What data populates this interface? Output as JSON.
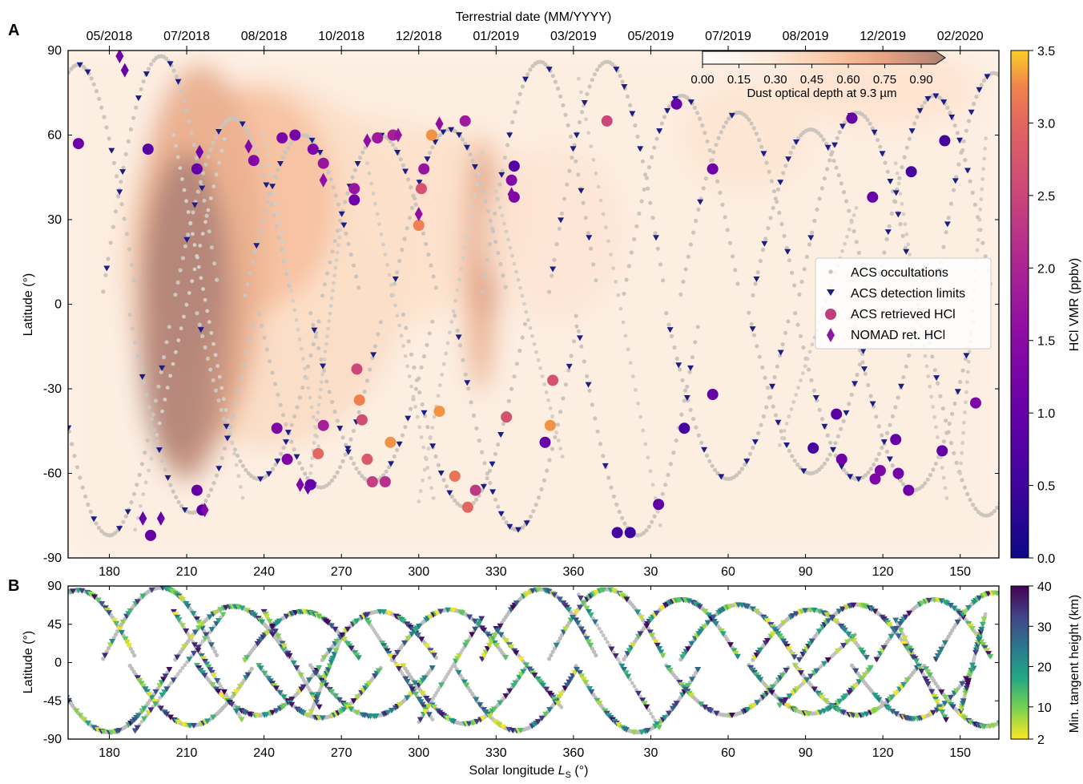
{
  "chart_data": [
    {
      "panel_label": "A",
      "type": "scatter",
      "xlabel": "",
      "ylabel": "Latitude (°)",
      "top_axis_title": "Terrestrial date (MM/YYYY)",
      "top_tick_labels": [
        "05/2018",
        "07/2018",
        "08/2018",
        "10/2018",
        "12/2018",
        "01/2019",
        "03/2019",
        "05/2019",
        "07/2019",
        "08/2019",
        "12/2019",
        "02/2020"
      ],
      "x_ticks": [
        180,
        210,
        240,
        270,
        300,
        330,
        360,
        30,
        60,
        90,
        120,
        150
      ],
      "xlim_continuous": [
        164,
        525
      ],
      "y_ticks": [
        90,
        60,
        30,
        0,
        -30,
        -60,
        -90
      ],
      "ylim": [
        -90,
        90
      ],
      "background_field": "Dust optical depth at 9.3 µm",
      "dust_colorbar": {
        "label": "Dust optical depth at 9.3 µm",
        "ticks": [
          "0.00",
          "0.15",
          "0.30",
          "0.45",
          "0.60",
          "0.75",
          "0.90"
        ],
        "colors": [
          "#fff5ec",
          "#fde3cf",
          "#f9c7a4",
          "#efa885",
          "#d18f77",
          "#b07e73"
        ]
      },
      "hcl_colorbar": {
        "label": "HCl VMR (ppbv)",
        "ticks": [
          "0.0",
          "0.5",
          "1.0",
          "1.5",
          "2.0",
          "2.5",
          "3.0",
          "3.5"
        ],
        "range": [
          0,
          3.5
        ],
        "colormap": "plasma"
      },
      "legend": [
        {
          "label": "ACS occultations",
          "marker": "dot",
          "color": "#c9c3bd"
        },
        {
          "label": "ACS detection limits",
          "marker": "triangle-down",
          "color": "#1d1d86"
        },
        {
          "label": "ACS retrieved HCl",
          "marker": "circle",
          "color": "#c1407b"
        },
        {
          "label": "NOMAD ret. HCl",
          "marker": "diamond",
          "color": "#8b1aa3"
        }
      ],
      "legend_position": "right-middle",
      "retrieved_hcl_points": [
        {
          "ls": 168,
          "lat": 57,
          "vmr": 1.1
        },
        {
          "ls": 195,
          "lat": 55,
          "vmr": 0.8
        },
        {
          "ls": 196,
          "lat": -82,
          "vmr": 1.0
        },
        {
          "ls": 214,
          "lat": 48,
          "vmr": 1.0
        },
        {
          "ls": 214,
          "lat": -66,
          "vmr": 1.0
        },
        {
          "ls": 216,
          "lat": -73,
          "vmr": 0.8
        },
        {
          "ls": 236,
          "lat": 51,
          "vmr": 1.4
        },
        {
          "ls": 247,
          "lat": 59,
          "vmr": 1.3
        },
        {
          "ls": 252,
          "lat": 60,
          "vmr": 1.2
        },
        {
          "ls": 259,
          "lat": 55,
          "vmr": 1.3
        },
        {
          "ls": 263,
          "lat": 50,
          "vmr": 1.7
        },
        {
          "ls": 263,
          "lat": -43,
          "vmr": 1.9
        },
        {
          "ls": 245,
          "lat": -44,
          "vmr": 1.3
        },
        {
          "ls": 249,
          "lat": -55,
          "vmr": 1.3
        },
        {
          "ls": 258,
          "lat": -64,
          "vmr": 1.0
        },
        {
          "ls": 261,
          "lat": -53,
          "vmr": 3.0
        },
        {
          "ls": 275,
          "lat": 37,
          "vmr": 1.1
        },
        {
          "ls": 275,
          "lat": 41,
          "vmr": 1.7
        },
        {
          "ls": 276,
          "lat": -23,
          "vmr": 2.5
        },
        {
          "ls": 277,
          "lat": -34,
          "vmr": 3.2
        },
        {
          "ls": 278,
          "lat": -41,
          "vmr": 2.6
        },
        {
          "ls": 280,
          "lat": -55,
          "vmr": 2.8
        },
        {
          "ls": 282,
          "lat": -63,
          "vmr": 2.4
        },
        {
          "ls": 287,
          "lat": -63,
          "vmr": 2.2
        },
        {
          "ls": 289,
          "lat": -49,
          "vmr": 3.3
        },
        {
          "ls": 284,
          "lat": 59,
          "vmr": 1.8
        },
        {
          "ls": 290,
          "lat": 60,
          "vmr": 1.9
        },
        {
          "ls": 300,
          "lat": 28,
          "vmr": 3.2
        },
        {
          "ls": 301,
          "lat": 41,
          "vmr": 2.7
        },
        {
          "ls": 302,
          "lat": 48,
          "vmr": 1.7
        },
        {
          "ls": 305,
          "lat": 60,
          "vmr": 3.3
        },
        {
          "ls": 308,
          "lat": -38,
          "vmr": 3.3
        },
        {
          "ls": 314,
          "lat": -61,
          "vmr": 3.1
        },
        {
          "ls": 318,
          "lat": 65,
          "vmr": 1.8
        },
        {
          "ls": 319,
          "lat": -72,
          "vmr": 3.0
        },
        {
          "ls": 322,
          "lat": -66,
          "vmr": 2.3
        },
        {
          "ls": 334,
          "lat": -40,
          "vmr": 2.7
        },
        {
          "ls": 336,
          "lat": 44,
          "vmr": 1.4
        },
        {
          "ls": 337,
          "lat": 49,
          "vmr": 0.8
        },
        {
          "ls": 337,
          "lat": 38,
          "vmr": 1.3
        },
        {
          "ls": 349,
          "lat": -49,
          "vmr": 1.0
        },
        {
          "ls": 351,
          "lat": -43,
          "vmr": 3.3
        },
        {
          "ls": 352,
          "lat": -27,
          "vmr": 2.7
        },
        {
          "ls": 373,
          "lat": 65,
          "vmr": 2.5
        },
        {
          "ls": 377,
          "lat": -81,
          "vmr": 0.6
        },
        {
          "ls": 382,
          "lat": -81,
          "vmr": 0.5
        },
        {
          "ls": 393,
          "lat": -71,
          "vmr": 0.9
        },
        {
          "ls": 400,
          "lat": 71,
          "vmr": 1.0
        },
        {
          "ls": 403,
          "lat": -44,
          "vmr": 0.6
        },
        {
          "ls": 414,
          "lat": -32,
          "vmr": 1.0
        },
        {
          "ls": 414,
          "lat": 48,
          "vmr": 1.1
        },
        {
          "ls": 453,
          "lat": -51,
          "vmr": 0.6
        },
        {
          "ls": 462,
          "lat": -39,
          "vmr": 0.8
        },
        {
          "ls": 464,
          "lat": -55,
          "vmr": 1.1
        },
        {
          "ls": 468,
          "lat": 66,
          "vmr": 1.0
        },
        {
          "ls": 476,
          "lat": 38,
          "vmr": 1.0
        },
        {
          "ls": 477,
          "lat": -62,
          "vmr": 1.3
        },
        {
          "ls": 479,
          "lat": -59,
          "vmr": 1.3
        },
        {
          "ls": 485,
          "lat": -48,
          "vmr": 1.0
        },
        {
          "ls": 486,
          "lat": -60,
          "vmr": 1.2
        },
        {
          "ls": 490,
          "lat": -66,
          "vmr": 1.1
        },
        {
          "ls": 491,
          "lat": 47,
          "vmr": 0.6
        },
        {
          "ls": 503,
          "lat": -52,
          "vmr": 0.9
        },
        {
          "ls": 504,
          "lat": 58,
          "vmr": 0.6
        },
        {
          "ls": 516,
          "lat": -35,
          "vmr": 1.3
        }
      ],
      "nomad_hcl_points": [
        {
          "ls": 184,
          "lat": 88,
          "vmr": 1.1
        },
        {
          "ls": 186,
          "lat": 83,
          "vmr": 1.0
        },
        {
          "ls": 193,
          "lat": -76,
          "vmr": 1.0
        },
        {
          "ls": 200,
          "lat": -76,
          "vmr": 1.0
        },
        {
          "ls": 215,
          "lat": 54,
          "vmr": 1.1
        },
        {
          "ls": 217,
          "lat": -73,
          "vmr": 1.4
        },
        {
          "ls": 234,
          "lat": 56,
          "vmr": 1.4
        },
        {
          "ls": 254,
          "lat": -64,
          "vmr": 1.3
        },
        {
          "ls": 257,
          "lat": -65,
          "vmr": 1.0
        },
        {
          "ls": 263,
          "lat": 44,
          "vmr": 1.6
        },
        {
          "ls": 280,
          "lat": 58,
          "vmr": 1.6
        },
        {
          "ls": 292,
          "lat": 60,
          "vmr": 1.7
        },
        {
          "ls": 300,
          "lat": 32,
          "vmr": 1.6
        },
        {
          "ls": 308,
          "lat": 64,
          "vmr": 1.6
        },
        {
          "ls": 336,
          "lat": 39,
          "vmr": 1.4
        }
      ]
    },
    {
      "panel_label": "B",
      "type": "scatter",
      "xlabel": "Solar longitude L_s (°)",
      "xlabel_main": "Solar longitude ",
      "xlabel_symbol": "L",
      "xlabel_sub": "S",
      "xlabel_unit": " (°)",
      "ylabel": "Latitude (°)",
      "x_ticks": [
        180,
        210,
        240,
        270,
        300,
        330,
        360,
        30,
        60,
        90,
        120,
        150
      ],
      "y_ticks": [
        90,
        45,
        0,
        -45,
        -90
      ],
      "ylim": [
        -90,
        90
      ],
      "colorbar": {
        "label": "Min. tangent height (km)",
        "ticks": [
          "40",
          "30",
          "20",
          "10",
          "2"
        ],
        "range": [
          2,
          40
        ],
        "colormap": "viridis_r"
      }
    }
  ]
}
